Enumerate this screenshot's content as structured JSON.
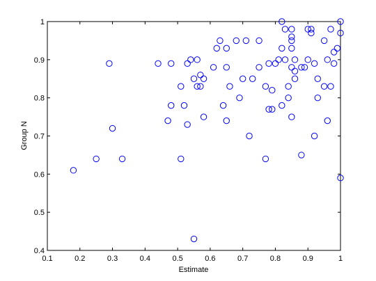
{
  "chart_data": {
    "type": "scatter",
    "title": "",
    "xlabel": "Estimate",
    "ylabel": "Group N",
    "xlim": [
      0.1,
      1
    ],
    "ylim": [
      0.4,
      1
    ],
    "xticks": [
      "0.1",
      "0.2",
      "0.3",
      "0.4",
      "0.5",
      "0.6",
      "0.7",
      "0.8",
      "0.9",
      "1"
    ],
    "yticks": [
      "0.4",
      "0.5",
      "0.6",
      "0.7",
      "0.8",
      "0.9",
      "1"
    ],
    "grid": false,
    "legend": "none",
    "marker": "open-circle",
    "marker_color": "#0000ff",
    "series": [
      {
        "points": [
          [
            0.18,
            0.61
          ],
          [
            0.25,
            0.64
          ],
          [
            0.29,
            0.89
          ],
          [
            0.3,
            0.72
          ],
          [
            0.33,
            0.64
          ],
          [
            0.44,
            0.89
          ],
          [
            0.47,
            0.74
          ],
          [
            0.48,
            0.78
          ],
          [
            0.48,
            0.89
          ],
          [
            0.51,
            0.64
          ],
          [
            0.51,
            0.83
          ],
          [
            0.52,
            0.78
          ],
          [
            0.53,
            0.73
          ],
          [
            0.53,
            0.89
          ],
          [
            0.54,
            0.9
          ],
          [
            0.55,
            0.43
          ],
          [
            0.55,
            0.85
          ],
          [
            0.56,
            0.83
          ],
          [
            0.56,
            0.9
          ],
          [
            0.57,
            0.83
          ],
          [
            0.57,
            0.86
          ],
          [
            0.58,
            0.85
          ],
          [
            0.58,
            0.75
          ],
          [
            0.61,
            0.88
          ],
          [
            0.62,
            0.93
          ],
          [
            0.63,
            0.95
          ],
          [
            0.64,
            0.78
          ],
          [
            0.65,
            0.74
          ],
          [
            0.65,
            0.93
          ],
          [
            0.65,
            0.88
          ],
          [
            0.66,
            0.83
          ],
          [
            0.68,
            0.95
          ],
          [
            0.69,
            0.8
          ],
          [
            0.7,
            0.85
          ],
          [
            0.71,
            0.95
          ],
          [
            0.72,
            0.7
          ],
          [
            0.73,
            0.85
          ],
          [
            0.75,
            0.95
          ],
          [
            0.75,
            0.88
          ],
          [
            0.77,
            0.64
          ],
          [
            0.77,
            0.83
          ],
          [
            0.78,
            0.77
          ],
          [
            0.78,
            0.89
          ],
          [
            0.79,
            0.77
          ],
          [
            0.79,
            0.82
          ],
          [
            0.8,
            0.89
          ],
          [
            0.81,
            0.9
          ],
          [
            0.82,
            0.78
          ],
          [
            0.82,
            0.93
          ],
          [
            0.82,
            1.0
          ],
          [
            0.83,
            0.98
          ],
          [
            0.83,
            0.9
          ],
          [
            0.84,
            0.83
          ],
          [
            0.84,
            0.8
          ],
          [
            0.85,
            0.75
          ],
          [
            0.85,
            0.88
          ],
          [
            0.85,
            0.93
          ],
          [
            0.85,
            0.95
          ],
          [
            0.85,
            0.96
          ],
          [
            0.85,
            0.98
          ],
          [
            0.86,
            0.9
          ],
          [
            0.86,
            0.85
          ],
          [
            0.86,
            0.87
          ],
          [
            0.88,
            0.65
          ],
          [
            0.88,
            0.88
          ],
          [
            0.89,
            0.88
          ],
          [
            0.9,
            0.98
          ],
          [
            0.9,
            0.9
          ],
          [
            0.91,
            0.97
          ],
          [
            0.91,
            0.98
          ],
          [
            0.92,
            0.7
          ],
          [
            0.92,
            0.89
          ],
          [
            0.93,
            0.85
          ],
          [
            0.93,
            0.8
          ],
          [
            0.95,
            0.83
          ],
          [
            0.95,
            0.95
          ],
          [
            0.96,
            0.9
          ],
          [
            0.96,
            0.74
          ],
          [
            0.97,
            0.83
          ],
          [
            0.97,
            0.98
          ],
          [
            0.98,
            0.89
          ],
          [
            0.98,
            0.92
          ],
          [
            0.99,
            0.93
          ],
          [
            1.0,
            0.97
          ],
          [
            1.0,
            1.0
          ],
          [
            1.0,
            0.59
          ]
        ]
      }
    ]
  }
}
